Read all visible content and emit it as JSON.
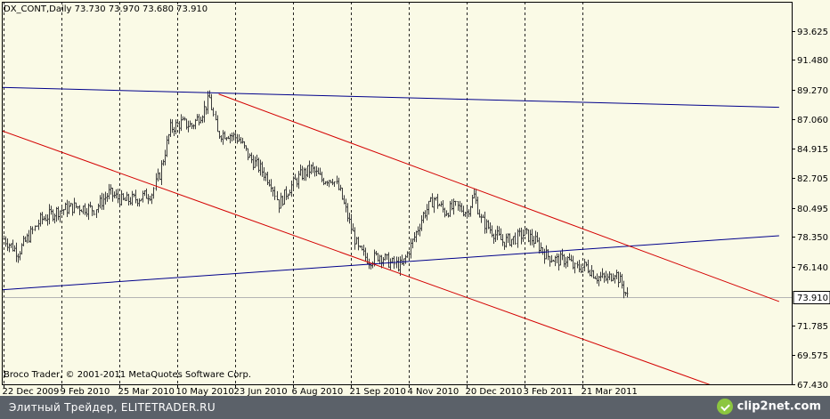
{
  "chart_data": {
    "type": "bar",
    "title": "DX_CONT,Daily 73.730 73.970 73.680 73.910",
    "copyright": "Broco Trader, © 2001-2011 MetaQuotes Software Corp.",
    "current_price": 73.91,
    "current_price_label": "73.910",
    "ylim": [
      67.423,
      95.78
    ],
    "y_ticks": [
      {
        "v": 93.625,
        "label": "93.625"
      },
      {
        "v": 91.48,
        "label": "91.480"
      },
      {
        "v": 89.27,
        "label": "89.270"
      },
      {
        "v": 87.06,
        "label": "87.060"
      },
      {
        "v": 84.915,
        "label": "84.915"
      },
      {
        "v": 82.705,
        "label": "82.705"
      },
      {
        "v": 80.495,
        "label": "80.495"
      },
      {
        "v": 78.35,
        "label": "78.350"
      },
      {
        "v": 76.14,
        "label": "76.140"
      },
      {
        "v": 71.785,
        "label": "71.785"
      },
      {
        "v": 69.575,
        "label": "69.575"
      },
      {
        "v": 67.43,
        "label": "67.430"
      }
    ],
    "x_ticks": [
      {
        "bar": 0,
        "label": "22 Dec 2009"
      },
      {
        "bar": 32,
        "label": "9 Feb 2010"
      },
      {
        "bar": 64,
        "label": "25 Mar 2010"
      },
      {
        "bar": 96,
        "label": "10 May 2010"
      },
      {
        "bar": 128,
        "label": "23 Jun 2010"
      },
      {
        "bar": 160,
        "label": "6 Aug 2010"
      },
      {
        "bar": 192,
        "label": "21 Sep 2010"
      },
      {
        "bar": 224,
        "label": "4 Nov 2010"
      },
      {
        "bar": 256,
        "label": "20 Dec 2010"
      },
      {
        "bar": 288,
        "label": "3 Feb 2011"
      },
      {
        "bar": 320,
        "label": "21 Mar 2011"
      }
    ],
    "bar_count": 346,
    "close_path": [
      [
        0,
        78.2
      ],
      [
        8,
        77.2
      ],
      [
        20,
        79.6
      ],
      [
        30,
        80.3
      ],
      [
        40,
        80.6
      ],
      [
        50,
        80.4
      ],
      [
        58,
        81.6
      ],
      [
        66,
        81.0
      ],
      [
        74,
        81.2
      ],
      [
        82,
        81.6
      ],
      [
        86,
        83.0
      ],
      [
        92,
        86.4
      ],
      [
        98,
        86.8
      ],
      [
        104,
        86.6
      ],
      [
        110,
        87.6
      ],
      [
        114,
        88.6
      ],
      [
        118,
        86.0
      ],
      [
        124,
        86.0
      ],
      [
        130,
        85.6
      ],
      [
        136,
        84.2
      ],
      [
        142,
        83.4
      ],
      [
        148,
        82.4
      ],
      [
        152,
        80.8
      ],
      [
        158,
        82.0
      ],
      [
        164,
        82.9
      ],
      [
        170,
        83.4
      ],
      [
        176,
        82.6
      ],
      [
        182,
        82.7
      ],
      [
        186,
        81.6
      ],
      [
        192,
        79.0
      ],
      [
        196,
        77.4
      ],
      [
        202,
        76.6
      ],
      [
        208,
        77.0
      ],
      [
        214,
        76.4
      ],
      [
        220,
        76.2
      ],
      [
        226,
        78.0
      ],
      [
        232,
        80.0
      ],
      [
        238,
        81.2
      ],
      [
        244,
        80.2
      ],
      [
        250,
        80.6
      ],
      [
        256,
        80.2
      ],
      [
        260,
        81.4
      ],
      [
        264,
        79.6
      ],
      [
        270,
        78.8
      ],
      [
        276,
        78.0
      ],
      [
        282,
        78.2
      ],
      [
        288,
        78.6
      ],
      [
        294,
        78.0
      ],
      [
        300,
        77.0
      ],
      [
        306,
        76.6
      ],
      [
        312,
        76.7
      ],
      [
        316,
        76.0
      ],
      [
        322,
        76.2
      ],
      [
        328,
        75.4
      ],
      [
        334,
        75.2
      ],
      [
        338,
        75.8
      ],
      [
        342,
        74.8
      ],
      [
        345,
        73.9
      ]
    ],
    "trend_lines": [
      {
        "color": "#00008b",
        "x1": -1,
        "y1": 89.43,
        "x2": 429,
        "y2": 87.96
      },
      {
        "color": "#00008b",
        "x1": -1,
        "y1": 74.43,
        "x2": 429,
        "y2": 78.44
      },
      {
        "color": "#d40000",
        "x1": 119,
        "y1": 88.94,
        "x2": 429,
        "y2": 73.56
      },
      {
        "color": "#d40000",
        "x1": -1,
        "y1": 86.22,
        "x2": 391,
        "y2": 67.38
      }
    ],
    "colors": {
      "background": "#fafae6",
      "bars": "#3c3c3c",
      "grid": "#000000",
      "price_line": "#b4b4b4",
      "price_label_bg": "#ffffff"
    }
  },
  "footer": {
    "text": "Элитный Трейдер, ELITETRADER.RU",
    "brand": "clip2net.com"
  }
}
